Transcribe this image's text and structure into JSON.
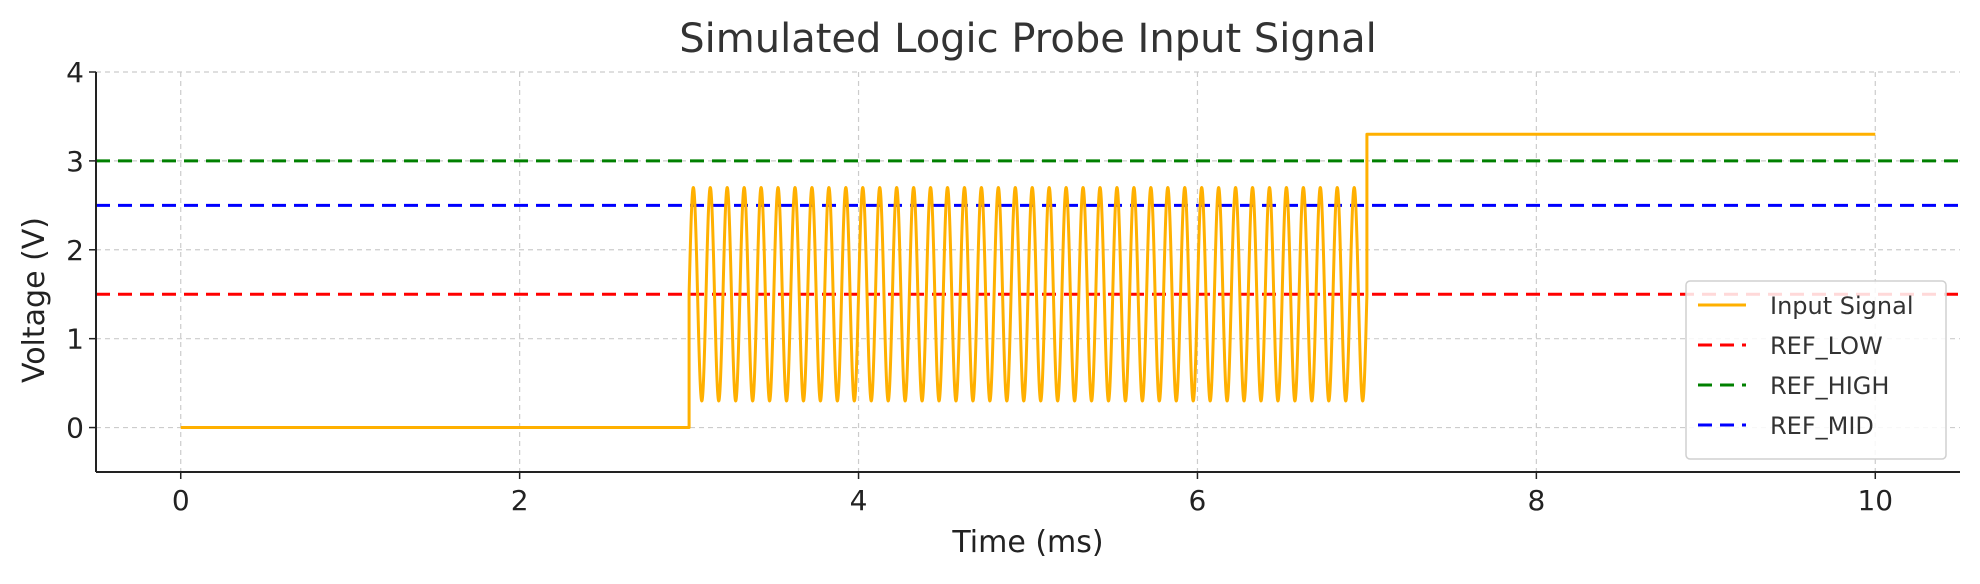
{
  "chart_data": {
    "type": "line",
    "title": "Simulated Logic Probe Input Signal",
    "xlabel": "Time (ms)",
    "ylabel": "Voltage (V)",
    "xlim": [
      -0.5,
      10.5
    ],
    "ylim": [
      -0.5,
      4
    ],
    "xticks": [
      0,
      2,
      4,
      6,
      8,
      10
    ],
    "yticks": [
      0,
      1,
      2,
      3,
      4
    ],
    "grid": true,
    "legend_position": "lower-right",
    "series": [
      {
        "name": "Input Signal",
        "style": "solid",
        "color": "#FFB000",
        "segments": [
          {
            "x_start": 0,
            "x_end": 3,
            "kind": "constant",
            "value": 0
          },
          {
            "x_start": 3,
            "x_end": 7,
            "kind": "oscillation",
            "offset": 1.5,
            "amplitude": 1.2,
            "frequency_khz": 10
          },
          {
            "x_start": 7,
            "x_end": 10,
            "kind": "constant",
            "value": 3.3
          }
        ]
      },
      {
        "name": "REF_LOW",
        "style": "dashed",
        "color": "#FF0000",
        "value": 1.5
      },
      {
        "name": "REF_HIGH",
        "style": "dashed",
        "color": "#008000",
        "value": 3.0
      },
      {
        "name": "REF_MID",
        "style": "dashed",
        "color": "#0000FF",
        "value": 2.5
      }
    ]
  }
}
